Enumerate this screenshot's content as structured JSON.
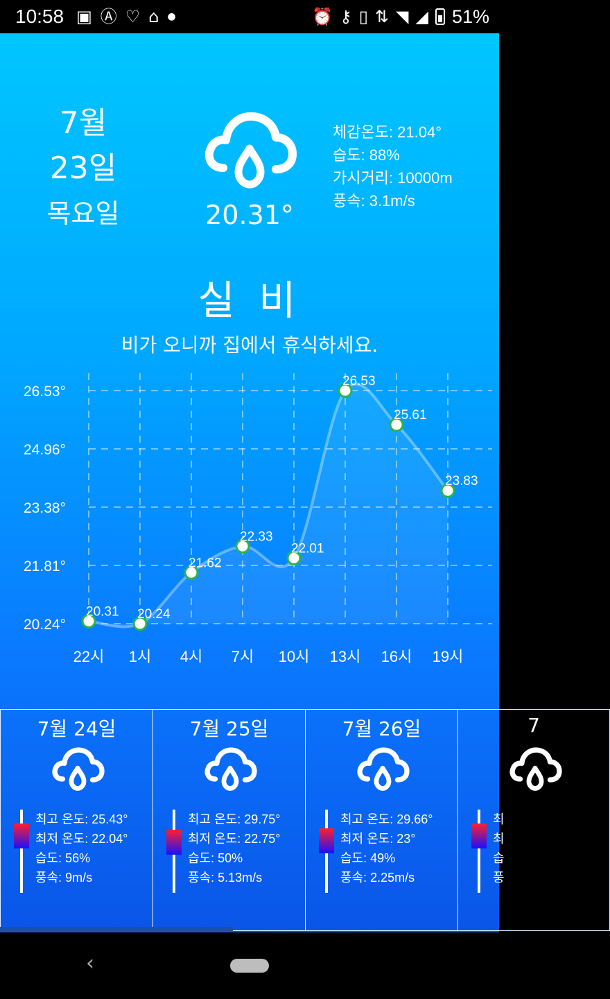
{
  "status": {
    "time": "10:58",
    "battery": "51%",
    "left_icons": [
      "image-icon",
      "app-icon",
      "chat-icon",
      "cake-icon",
      "dot-icon"
    ],
    "right_icons": [
      "alarm-icon",
      "key-icon",
      "vibrate-icon",
      "data-icon",
      "wifi-icon",
      "signal-icon",
      "battery-icon"
    ]
  },
  "today": {
    "month": "7월",
    "day": "23일",
    "weekday": "목요일",
    "temp": "20.31°",
    "feels_like": "체감온도: 21.04°",
    "humidity": "습도: 88%",
    "visibility": "가시거리: 10000m",
    "wind": "풍속: 3.1m/s",
    "condition": "실 비",
    "message": "비가 오니까 집에서 휴식하세요.",
    "icon": "rain-cloud-icon"
  },
  "chart_data": {
    "type": "line",
    "categories": [
      "22시",
      "1시",
      "4시",
      "7시",
      "10시",
      "13시",
      "16시",
      "19시"
    ],
    "values": [
      20.31,
      20.24,
      21.62,
      22.33,
      22.01,
      26.53,
      25.61,
      23.83
    ],
    "data_labels": [
      "20.31",
      "20.24",
      "21.62",
      "22.33",
      "22.01",
      "26.53",
      "25.61",
      "23.83"
    ],
    "y_ticks": [
      "26.53°",
      "24.96°",
      "23.38°",
      "21.81°",
      "20.24°"
    ],
    "ylim": [
      20.24,
      26.53
    ],
    "grid": true
  },
  "forecast": [
    {
      "date": "7월 24일",
      "max": "최고 온도: 25.43°",
      "min": "최저 온도: 22.04°",
      "humidity": "습도: 56%",
      "wind": "풍속: 9m/s",
      "icon": "rain-cloud-icon"
    },
    {
      "date": "7월 25일",
      "max": "최고 온도: 29.75°",
      "min": "최저 온도: 22.75°",
      "humidity": "습도: 50%",
      "wind": "풍속: 5.13m/s",
      "icon": "rain-cloud-icon"
    },
    {
      "date": "7월 26일",
      "max": "최고 온도: 29.66°",
      "min": "최저 온도: 23°",
      "humidity": "습도: 49%",
      "wind": "풍속: 2.25m/s",
      "icon": "rain-cloud-icon"
    },
    {
      "date": "7",
      "max": "최",
      "min": "최",
      "humidity": "습",
      "wind": "풍",
      "icon": "rain-cloud-icon"
    }
  ],
  "nav": {
    "back_icon": "back-icon",
    "home_icon": "home-pill-icon"
  }
}
